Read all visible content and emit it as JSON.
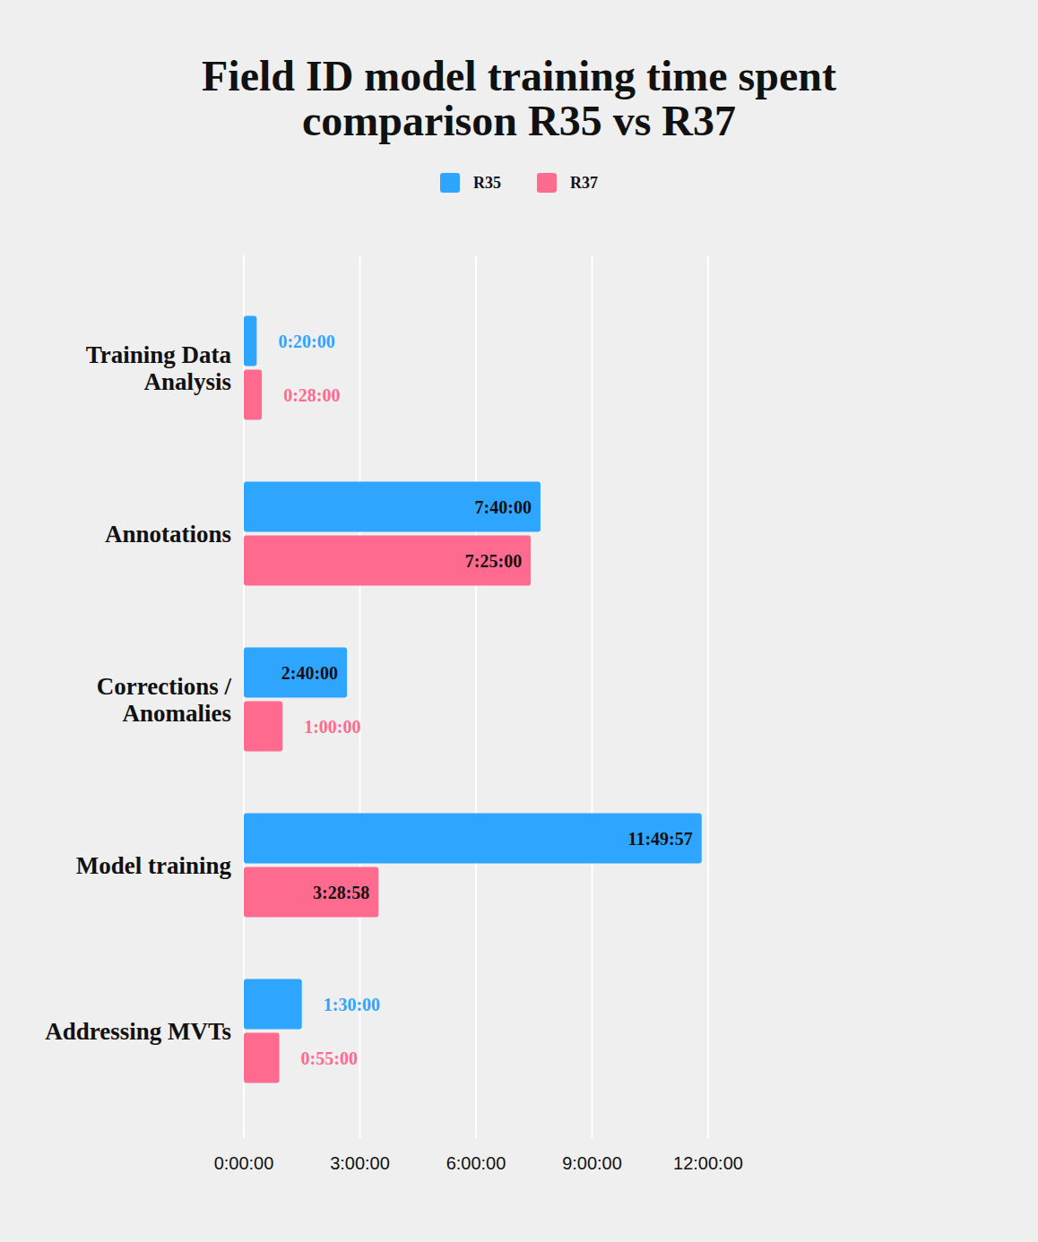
{
  "chart_data": {
    "type": "bar",
    "orientation": "horizontal",
    "title": "Field ID model training time spent comparison R35 vs R37",
    "categories": [
      "Training Data Analysis",
      "Annotations",
      "Corrections / Anomalies",
      "Model training",
      "Addressing MVTs"
    ],
    "series": [
      {
        "name": "R35",
        "color": "#2ea6ff",
        "values": [
          1200,
          27600,
          9600,
          42597,
          5400
        ],
        "value_labels": [
          "0:20:00",
          "7:40:00",
          "2:40:00",
          "11:49:57",
          "1:30:00"
        ]
      },
      {
        "name": "R37",
        "color": "#ff6a8f",
        "values": [
          1680,
          26700,
          3600,
          12538,
          3300
        ],
        "value_labels": [
          "0:28:00",
          "7:25:00",
          "1:00:00",
          "3:28:58",
          "0:55:00"
        ]
      }
    ],
    "xlim": [
      0,
      43200
    ],
    "xticks": [
      {
        "value": 0,
        "label": "0:00:00"
      },
      {
        "value": 10800,
        "label": "3:00:00"
      },
      {
        "value": 21600,
        "label": "6:00:00"
      },
      {
        "value": 32400,
        "label": "9:00:00"
      },
      {
        "value": 43200,
        "label": "12:00:00"
      }
    ],
    "grid": true,
    "legend": "top",
    "data_labels": true
  }
}
